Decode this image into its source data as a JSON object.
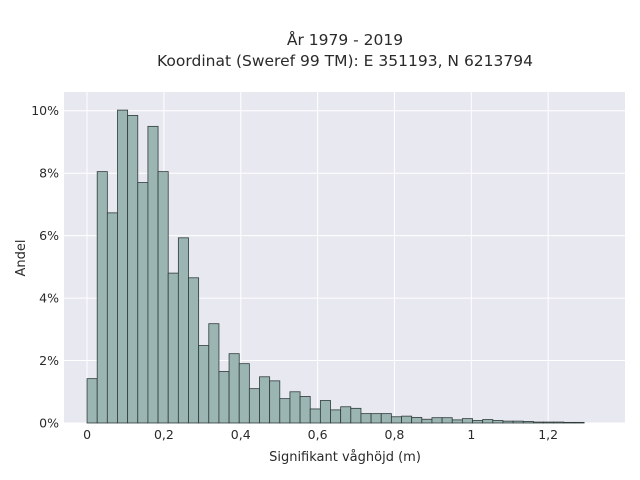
{
  "chart_data": {
    "type": "bar",
    "title": "År 1979 - 2019",
    "subtitle": "Koordinat (Sweref 99 TM): E 351193, N 6213794",
    "xlabel": "Signifikant våghöjd (m)",
    "ylabel": "Andel",
    "xlim": [
      -0.06,
      1.4
    ],
    "ylim": [
      0,
      10.6
    ],
    "x_ticks": [
      0,
      0.2,
      0.4,
      0.6,
      0.8,
      1,
      1.2
    ],
    "x_tick_labels": [
      "0",
      "0,2",
      "0,4",
      "0,6",
      "0,8",
      "1",
      "1,2"
    ],
    "y_ticks": [
      0,
      2,
      4,
      6,
      8,
      10
    ],
    "y_tick_labels": [
      "0%",
      "2%",
      "4%",
      "6%",
      "8%",
      "10%"
    ],
    "grid": true,
    "bin_start": 0,
    "bin_width": 0.0264,
    "values": [
      1.42,
      8.05,
      6.73,
      10.02,
      9.85,
      7.7,
      9.5,
      8.05,
      4.8,
      5.93,
      4.65,
      2.48,
      3.18,
      1.65,
      2.22,
      1.9,
      1.1,
      1.48,
      1.35,
      0.78,
      1.0,
      0.85,
      0.45,
      0.72,
      0.42,
      0.52,
      0.47,
      0.3,
      0.3,
      0.3,
      0.2,
      0.22,
      0.18,
      0.12,
      0.17,
      0.17,
      0.1,
      0.14,
      0.08,
      0.11,
      0.08,
      0.06,
      0.06,
      0.05,
      0.03,
      0.03,
      0.03,
      0.02,
      0.02
    ],
    "colors": {
      "bar_fill": "#9bb5b3",
      "bar_stroke": "#2e3b3a",
      "plot_background": "#e8e8f0",
      "grid": "#ffffff"
    }
  }
}
